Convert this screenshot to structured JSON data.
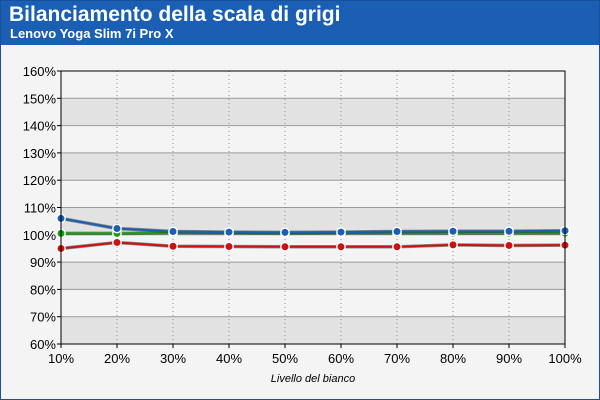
{
  "header": {
    "title": "Bilanciamento della scala di grigi",
    "subtitle": "Lenovo Yoga Slim 7i Pro X"
  },
  "colors": {
    "header_bg": "#1a5fb4",
    "band_dark": "#e2e2e2",
    "band_light": "#f4f4f4"
  },
  "chart_data": {
    "type": "line",
    "title": "Bilanciamento della scala di grigi",
    "subtitle": "Lenovo Yoga Slim 7i Pro X",
    "xlabel": "Livello del bianco",
    "ylabel": "",
    "x": [
      "10%",
      "20%",
      "30%",
      "40%",
      "50%",
      "60%",
      "70%",
      "80%",
      "90%",
      "100%"
    ],
    "ylim": [
      60,
      160
    ],
    "yticks": [
      60,
      70,
      80,
      90,
      100,
      110,
      120,
      130,
      140,
      150,
      160
    ],
    "ytick_labels": [
      "60%",
      "70%",
      "80%",
      "90%",
      "100%",
      "110%",
      "120%",
      "130%",
      "140%",
      "150%",
      "160%"
    ],
    "grid": true,
    "series": [
      {
        "color": "#cc1111",
        "values": [
          95.0,
          97.2,
          95.8,
          95.7,
          95.6,
          95.6,
          95.6,
          96.3,
          96.1,
          96.2
        ]
      },
      {
        "color": "#11a011",
        "values": [
          100.5,
          100.5,
          100.7,
          100.6,
          100.5,
          100.6,
          100.6,
          100.6,
          100.6,
          100.6
        ]
      },
      {
        "color": "#1a5fb4",
        "values": [
          106.0,
          102.3,
          101.2,
          101.0,
          100.9,
          101.0,
          101.2,
          101.3,
          101.3,
          101.5
        ]
      }
    ]
  }
}
